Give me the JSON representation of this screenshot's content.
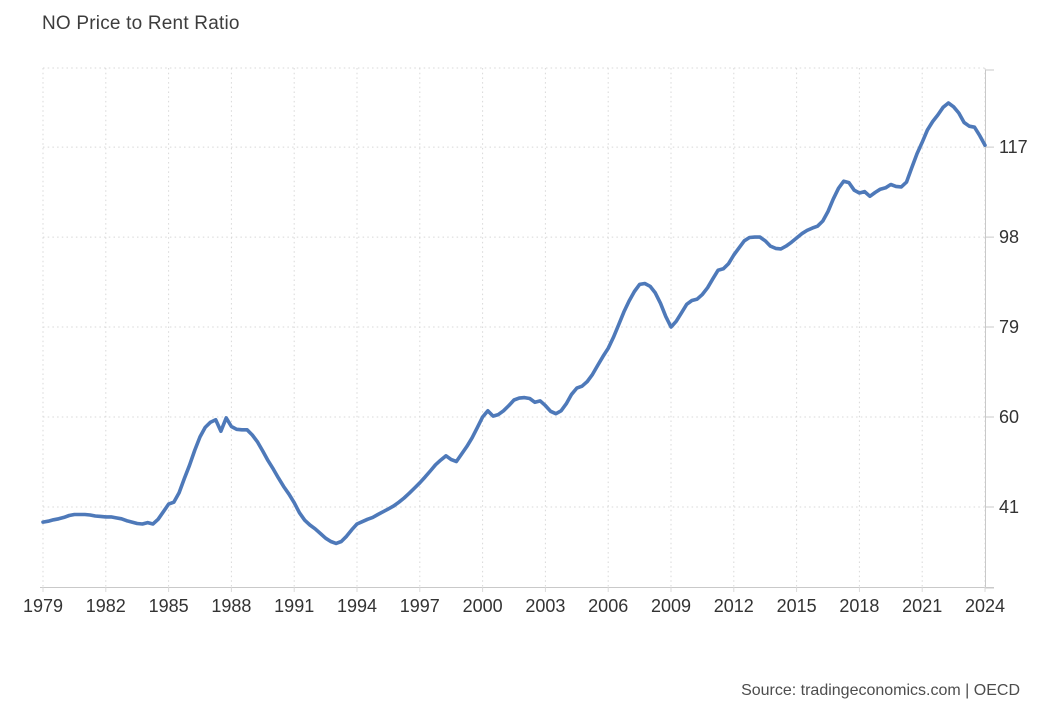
{
  "title": "NO Price to Rent Ratio",
  "source": "Source: tradingeconomics.com | OECD",
  "colors": {
    "line": "#4e79b9",
    "grid": "#d8d8d8",
    "axis": "#c9c9c9",
    "text": "#333333",
    "title_text": "#3d3d3d",
    "source_text": "#4d4d4d",
    "background": "#ffffff"
  },
  "chart_data": {
    "type": "line",
    "title": "NO Price to Rent Ratio",
    "xlabel": "",
    "ylabel": "",
    "x_start": 1979.0,
    "x_end": 2024.0,
    "x_step_years": 0.25,
    "ylim": [
      24.1,
      133.7
    ],
    "grid": "dotted",
    "legend": "none",
    "x_ticks": [
      1979,
      1982,
      1985,
      1988,
      1991,
      1994,
      1997,
      2000,
      2003,
      2006,
      2009,
      2012,
      2015,
      2018,
      2021,
      2024
    ],
    "x_tick_labels": [
      "1979",
      "1982",
      "1985",
      "1988",
      "1991",
      "1994",
      "1997",
      "2000",
      "2003",
      "2006",
      "2009",
      "2012",
      "2015",
      "2018",
      "2021",
      "2024"
    ],
    "y_ticks": [
      117,
      98,
      79,
      60,
      41
    ],
    "y_tick_labels": [
      "117",
      "98",
      "79",
      "60",
      "41"
    ],
    "series": [
      {
        "name": "NO Price to Rent Ratio",
        "frequency": "quarterly",
        "values": [
          37.8,
          38.0,
          38.3,
          38.5,
          38.8,
          39.2,
          39.4,
          39.4,
          39.4,
          39.3,
          39.1,
          39.0,
          38.9,
          38.9,
          38.7,
          38.5,
          38.1,
          37.8,
          37.5,
          37.4,
          37.7,
          37.4,
          38.4,
          40.0,
          41.6,
          42.0,
          44.0,
          47.0,
          49.8,
          53.0,
          55.8,
          57.8,
          58.9,
          59.4,
          57.0,
          59.8,
          58.0,
          57.4,
          57.3,
          57.3,
          56.2,
          54.7,
          52.8,
          50.8,
          49.0,
          47.1,
          45.3,
          43.7,
          41.9,
          39.8,
          38.2,
          37.2,
          36.4,
          35.4,
          34.4,
          33.7,
          33.3,
          33.7,
          34.8,
          36.2,
          37.4,
          37.9,
          38.4,
          38.8,
          39.4,
          40.0,
          40.6,
          41.2,
          42.0,
          42.9,
          43.9,
          45.0,
          46.1,
          47.3,
          48.6,
          49.9,
          50.9,
          51.8,
          51.0,
          50.6,
          52.2,
          53.8,
          55.6,
          57.8,
          60.0,
          61.3,
          60.2,
          60.5,
          61.3,
          62.4,
          63.6,
          64.0,
          64.1,
          63.9,
          63.1,
          63.4,
          62.4,
          61.2,
          60.7,
          61.3,
          62.8,
          64.8,
          66.1,
          66.5,
          67.5,
          69.0,
          70.9,
          72.8,
          74.5,
          76.8,
          79.5,
          82.2,
          84.5,
          86.5,
          88.0,
          88.2,
          87.6,
          86.2,
          84.0,
          81.2,
          79.0,
          80.2,
          82.0,
          83.8,
          84.6,
          84.9,
          85.9,
          87.3,
          89.2,
          91.0,
          91.3,
          92.4,
          94.2,
          95.7,
          97.2,
          97.9,
          98.0,
          98.0,
          97.2,
          96.1,
          95.6,
          95.5,
          96.1,
          96.9,
          97.8,
          98.7,
          99.4,
          99.9,
          100.3,
          101.4,
          103.4,
          106.0,
          108.3,
          109.8,
          109.5,
          107.9,
          107.3,
          107.6,
          106.6,
          107.4,
          108.1,
          108.4,
          109.1,
          108.7,
          108.6,
          109.6,
          112.6,
          115.6,
          118.0,
          120.6,
          122.4,
          123.8,
          125.4,
          126.3,
          125.5,
          124.2,
          122.2,
          121.4,
          121.2,
          119.4,
          117.4
        ]
      }
    ]
  }
}
